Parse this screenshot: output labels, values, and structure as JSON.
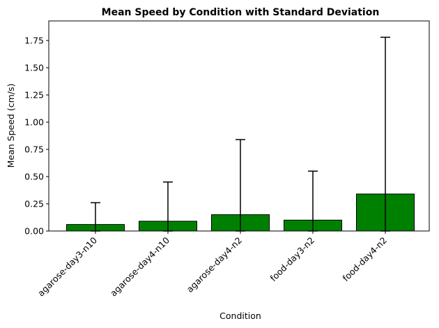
{
  "chart_data": {
    "type": "bar",
    "title": "Mean Speed by Condition with Standard Deviation",
    "xlabel": "Condition",
    "ylabel": "Mean Speed (cm/s)",
    "categories": [
      "agarose-day3-n10",
      "agarose-day4-n10",
      "agarose-day4-n2",
      "food-day3-n2",
      "food-day4-n2"
    ],
    "values": [
      0.06,
      0.09,
      0.15,
      0.1,
      0.34
    ],
    "error": [
      0.2,
      0.36,
      0.69,
      0.45,
      1.44
    ],
    "ylim": [
      0,
      1.93
    ],
    "yticks": [
      "0.00",
      "0.25",
      "0.50",
      "0.75",
      "1.00",
      "1.25",
      "1.50",
      "1.75"
    ],
    "bar_color": "#008000",
    "edge_color": "#000000",
    "grid": false,
    "legend": false
  }
}
